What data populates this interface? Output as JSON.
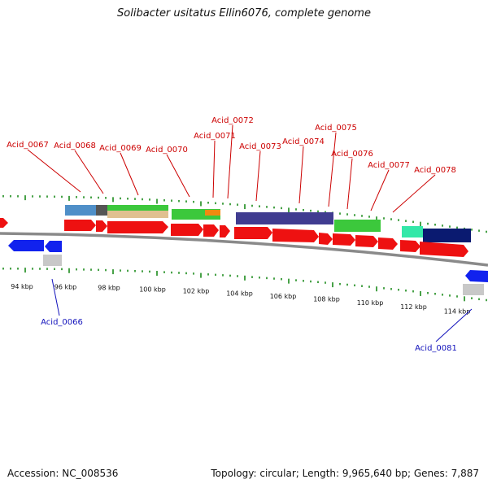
{
  "title": "Solibacter usitatus Ellin6076, complete genome",
  "footer": {
    "accession": "Accession: NC_008536",
    "summary": "Topology: circular; Length: 9,965,640 bp; Genes: 7,887"
  },
  "colors": {
    "backbone": "#8a8a8a",
    "forward_gene": "#ee1111",
    "reverse_gene": "#1122ee",
    "rna": "#c8c8c8",
    "tick": "#1a8a1a",
    "forward_label": "#cc0000",
    "reverse_label": "#1111bb"
  },
  "scale_ticks": [
    "94 kbp",
    "96 kbp",
    "98 kbp",
    "100 kbp",
    "102 kbp",
    "104 kbp",
    "106 kbp",
    "108 kbp",
    "110 kbp",
    "112 kbp",
    "114 kbp"
  ],
  "forward_labels": [
    "Acid_0067",
    "Acid_0068",
    "Acid_0069",
    "Acid_0070",
    "Acid_0071",
    "Acid_0072",
    "Acid_0073",
    "Acid_0074",
    "Acid_0075",
    "Acid_0076",
    "Acid_0077",
    "Acid_0078"
  ],
  "reverse_labels": [
    "Acid_0066",
    "Acid_0081"
  ]
}
